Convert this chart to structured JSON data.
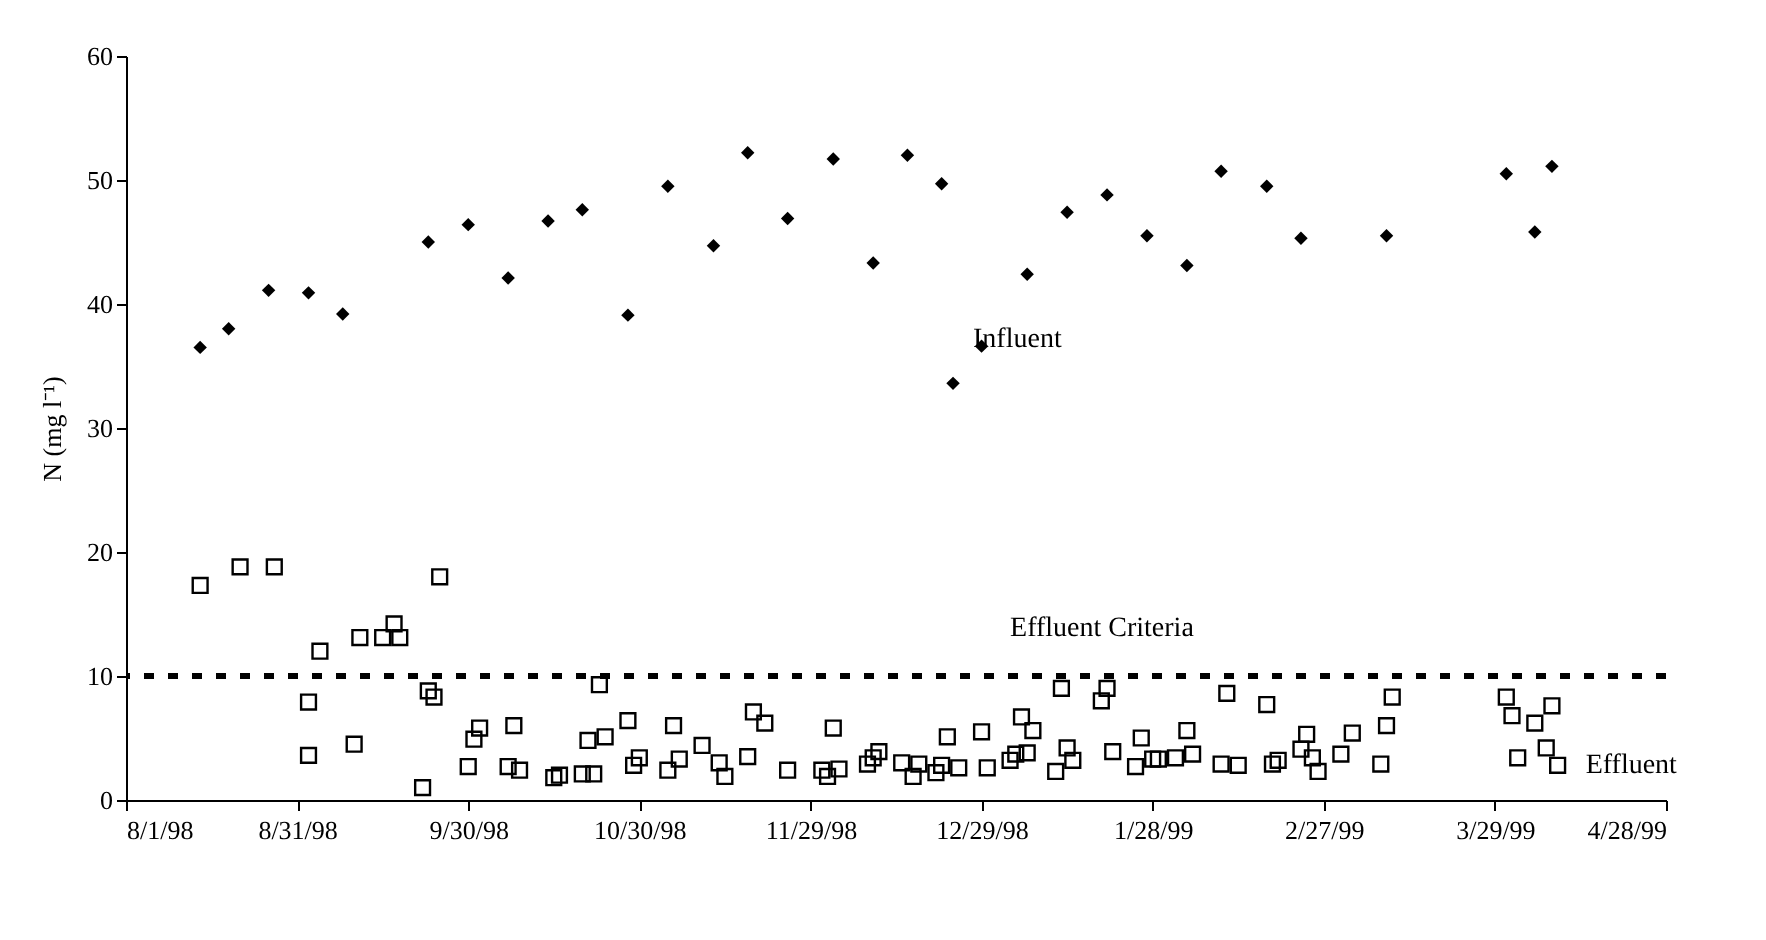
{
  "chart_data": {
    "type": "scatter",
    "ylabel": "N (mg l⁻¹)",
    "xlim": [
      "1998-08-01",
      "1999-04-28"
    ],
    "xticks": [
      {
        "value": "1998-08-01",
        "label": "8/1/98"
      },
      {
        "value": "1998-08-31",
        "label": "8/31/98"
      },
      {
        "value": "1998-09-30",
        "label": "9/30/98"
      },
      {
        "value": "1998-10-30",
        "label": "10/30/98"
      },
      {
        "value": "1998-11-29",
        "label": "11/29/98"
      },
      {
        "value": "1998-12-29",
        "label": "12/29/98"
      },
      {
        "value": "1999-01-28",
        "label": "1/28/99"
      },
      {
        "value": "1999-02-27",
        "label": "2/27/99"
      },
      {
        "value": "1999-03-29",
        "label": "3/29/99"
      },
      {
        "value": "1999-04-28",
        "label": "4/28/99"
      }
    ],
    "ylim": [
      0,
      60
    ],
    "yticks": [
      0,
      10,
      20,
      30,
      40,
      50,
      60
    ],
    "grid": false,
    "ref_lines": [
      {
        "axis": "y",
        "value": 10,
        "label": "Effluent Criteria",
        "color": "#000000",
        "line_style": "dashed"
      }
    ],
    "series": [
      {
        "name": "Influent",
        "color": "#000000",
        "marker": "diamond",
        "x": [
          "1998-08-14",
          "1998-08-19",
          "1998-08-26",
          "1998-09-02",
          "1998-09-08",
          "1998-09-23",
          "1998-09-30",
          "1998-10-07",
          "1998-10-14",
          "1998-10-20",
          "1998-10-28",
          "1998-11-04",
          "1998-11-12",
          "1998-11-18",
          "1998-11-25",
          "1998-12-03",
          "1998-12-10",
          "1998-12-16",
          "1998-12-22",
          "1998-12-24",
          "1998-12-29",
          "1999-01-06",
          "1999-01-13",
          "1999-01-20",
          "1999-01-27",
          "1999-02-03",
          "1999-02-09",
          "1999-02-17",
          "1999-02-23",
          "1999-03-10",
          "1999-03-31",
          "1999-04-05",
          "1999-04-08"
        ],
        "values": [
          36.5,
          38.0,
          41.1,
          40.9,
          39.2,
          45.0,
          46.4,
          42.1,
          46.7,
          47.6,
          39.1,
          49.5,
          44.7,
          52.2,
          46.9,
          51.7,
          43.3,
          52.0,
          49.7,
          33.6,
          36.6,
          42.4,
          47.4,
          48.8,
          45.5,
          43.1,
          50.7,
          49.5,
          45.3,
          45.5,
          50.5,
          45.8,
          51.1
        ]
      },
      {
        "name": "Effluent",
        "color": "#000000",
        "marker": "square",
        "x": [
          "1998-08-14",
          "1998-08-21",
          "1998-08-27",
          "1998-09-02",
          "1998-09-02",
          "1998-09-04",
          "1998-09-10",
          "1998-09-11",
          "1998-09-15",
          "1998-09-17",
          "1998-09-18",
          "1998-09-22",
          "1998-09-23",
          "1998-09-24",
          "1998-09-25",
          "1998-09-30",
          "1998-10-01",
          "1998-10-02",
          "1998-10-07",
          "1998-10-08",
          "1998-10-09",
          "1998-10-15",
          "1998-10-16",
          "1998-10-20",
          "1998-10-21",
          "1998-10-22",
          "1998-10-23",
          "1998-10-24",
          "1998-10-28",
          "1998-10-29",
          "1998-10-30",
          "1998-11-04",
          "1998-11-05",
          "1998-11-06",
          "1998-11-10",
          "1998-11-13",
          "1998-11-14",
          "1998-11-18",
          "1998-11-19",
          "1998-11-21",
          "1998-11-25",
          "1998-12-01",
          "1998-12-02",
          "1998-12-03",
          "1998-12-04",
          "1998-12-09",
          "1998-12-10",
          "1998-12-11",
          "1998-12-15",
          "1998-12-17",
          "1998-12-18",
          "1998-12-21",
          "1998-12-22",
          "1998-12-23",
          "1998-12-25",
          "1998-12-29",
          "1998-12-30",
          "1999-01-03",
          "1999-01-04",
          "1999-01-05",
          "1999-01-06",
          "1999-01-07",
          "1999-01-11",
          "1999-01-12",
          "1999-01-13",
          "1999-01-14",
          "1999-01-19",
          "1999-01-20",
          "1999-01-21",
          "1999-01-25",
          "1999-01-26",
          "1999-01-28",
          "1999-01-29",
          "1999-02-01",
          "1999-02-03",
          "1999-02-04",
          "1999-02-09",
          "1999-02-10",
          "1999-02-12",
          "1999-02-17",
          "1999-02-18",
          "1999-02-19",
          "1999-02-23",
          "1999-02-24",
          "1999-02-25",
          "1999-02-26",
          "1999-03-02",
          "1999-03-04",
          "1999-03-09",
          "1999-03-10",
          "1999-03-11",
          "1999-03-31",
          "1999-04-01",
          "1999-04-02",
          "1999-04-05",
          "1999-04-07",
          "1999-04-08",
          "1999-04-09"
        ],
        "values": [
          17.3,
          18.8,
          18.8,
          3.6,
          7.9,
          12.0,
          4.5,
          13.1,
          13.1,
          14.2,
          13.1,
          1.0,
          8.8,
          8.3,
          18.0,
          2.7,
          4.9,
          5.8,
          2.7,
          6.0,
          2.4,
          1.8,
          2.0,
          2.1,
          4.8,
          2.1,
          9.3,
          5.1,
          6.4,
          2.8,
          3.4,
          2.4,
          6.0,
          3.3,
          4.4,
          3.0,
          1.9,
          3.5,
          7.1,
          6.2,
          2.4,
          2.4,
          1.9,
          5.8,
          2.5,
          2.9,
          3.4,
          3.9,
          3.0,
          1.9,
          2.9,
          2.2,
          2.8,
          5.1,
          2.6,
          5.5,
          2.6,
          3.2,
          3.7,
          6.7,
          3.8,
          5.6,
          2.3,
          9.0,
          4.2,
          3.2,
          8.0,
          9.0,
          3.9,
          2.7,
          5.0,
          3.3,
          3.3,
          3.4,
          5.6,
          3.7,
          2.9,
          8.6,
          2.8,
          7.7,
          2.9,
          3.2,
          4.1,
          5.3,
          3.4,
          2.3,
          3.7,
          5.4,
          2.9,
          6.0,
          8.3,
          8.3,
          6.8,
          3.4,
          6.2,
          4.2,
          7.6,
          2.8
        ]
      }
    ]
  }
}
